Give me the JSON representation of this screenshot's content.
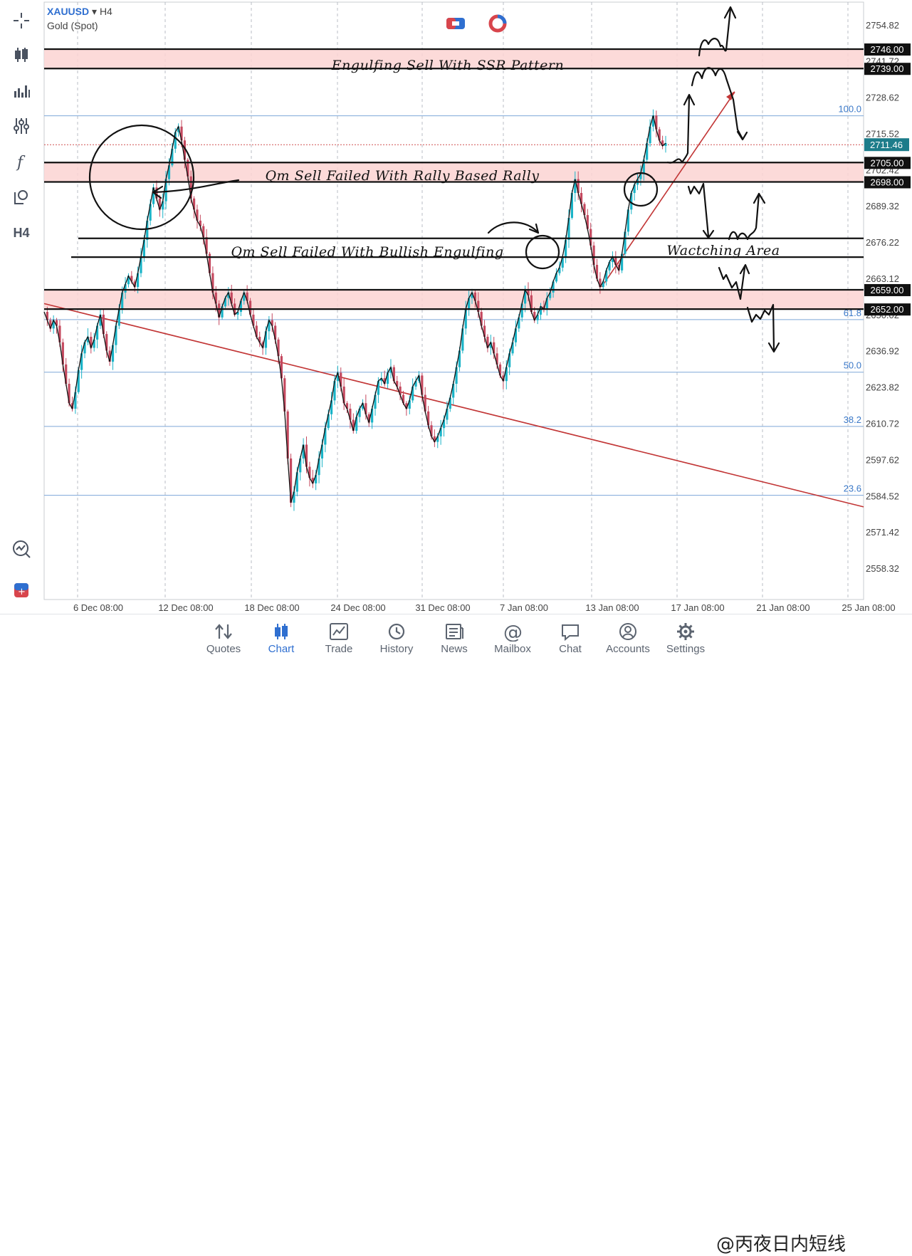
{
  "header": {
    "symbol": "XAUUSD",
    "timeframe": "H4",
    "description": "Gold (Spot)"
  },
  "toolbar": {
    "items": [
      {
        "icon": "crosshair-icon"
      },
      {
        "icon": "candlestick-icon"
      },
      {
        "icon": "indicators-icon"
      },
      {
        "icon": "sliders-icon"
      },
      {
        "icon": "function-icon"
      },
      {
        "icon": "objects-icon"
      },
      {
        "icon": "timeframe-label",
        "label": "H4"
      },
      {
        "icon": "zoom-chart-icon"
      },
      {
        "icon": "trade-icon"
      }
    ]
  },
  "colors": {
    "bull": "#19b3c7",
    "bear": "#c4485e",
    "zone": "#fbd4d2",
    "fib": "#7ea7d8",
    "trend": "#c23636",
    "active": "#2f6fd0"
  },
  "chart_data": {
    "type": "candlestick",
    "symbol": "XAUUSD",
    "timeframe": "H4",
    "ylim": [
      2547,
      2763
    ],
    "y_ticks": [
      2754.82,
      2741.72,
      2728.62,
      2715.52,
      2702.42,
      2689.32,
      2676.22,
      2663.12,
      2650.02,
      2636.92,
      2623.82,
      2610.72,
      2597.62,
      2584.52,
      2571.42,
      2558.32
    ],
    "x_labels": [
      "6 Dec 08:00",
      "12 Dec 08:00",
      "18 Dec 08:00",
      "24 Dec 08:00",
      "31 Dec 08:00",
      "7 Jan 08:00",
      "13 Jan 08:00",
      "17 Jan 08:00",
      "21 Jan 08:00",
      "25 Jan 08:00"
    ],
    "current_price": "2711.46",
    "price_path": [
      2651,
      2648,
      2645,
      2648,
      2646,
      2640,
      2632,
      2625,
      2618,
      2616,
      2622,
      2630,
      2636,
      2640,
      2642,
      2638,
      2641,
      2646,
      2650,
      2643,
      2637,
      2633,
      2639,
      2646,
      2652,
      2658,
      2661,
      2664,
      2662,
      2660,
      2665,
      2671,
      2677,
      2684,
      2690,
      2696,
      2692,
      2688,
      2691,
      2699,
      2704,
      2710,
      2716,
      2718,
      2713,
      2706,
      2700,
      2692,
      2688,
      2684,
      2682,
      2678,
      2672,
      2665,
      2658,
      2654,
      2649,
      2653,
      2656,
      2658,
      2654,
      2650,
      2651,
      2655,
      2658,
      2655,
      2650,
      2646,
      2642,
      2640,
      2638,
      2644,
      2648,
      2646,
      2641,
      2635,
      2627,
      2615,
      2598,
      2582,
      2586,
      2593,
      2598,
      2603,
      2595,
      2591,
      2589,
      2592,
      2598,
      2603,
      2609,
      2614,
      2619,
      2626,
      2629,
      2624,
      2618,
      2616,
      2612,
      2608,
      2613,
      2616,
      2618,
      2614,
      2611,
      2616,
      2621,
      2626,
      2627,
      2625,
      2629,
      2631,
      2626,
      2624,
      2621,
      2618,
      2616,
      2619,
      2624,
      2626,
      2628,
      2621,
      2615,
      2610,
      2606,
      2604,
      2606,
      2609,
      2612,
      2616,
      2620,
      2625,
      2631,
      2637,
      2645,
      2652,
      2656,
      2658,
      2655,
      2651,
      2646,
      2642,
      2638,
      2640,
      2636,
      2632,
      2628,
      2626,
      2631,
      2636,
      2640,
      2645,
      2649,
      2654,
      2659,
      2657,
      2651,
      2648,
      2650,
      2653,
      2652,
      2656,
      2658,
      2662,
      2665,
      2667,
      2671,
      2677,
      2685,
      2694,
      2699,
      2694,
      2690,
      2686,
      2681,
      2675,
      2668,
      2663,
      2660,
      2662,
      2666,
      2669,
      2671,
      2668,
      2666,
      2672,
      2680,
      2688,
      2694,
      2697,
      2699,
      2701,
      2706,
      2712,
      2718,
      2722,
      2717,
      2713,
      2711,
      2712
    ],
    "horizontal_levels": [
      {
        "price": "2746.00",
        "y": 2746.0
      },
      {
        "price": "2739.00",
        "y": 2739.0
      },
      {
        "price": "2705.00",
        "y": 2705.0
      },
      {
        "price": "2698.00",
        "y": 2698.0
      },
      {
        "price": "2659.00",
        "y": 2659.0
      },
      {
        "price": "2652.00",
        "y": 2652.0
      }
    ],
    "extra_lines": [
      2677.6,
      2670.8
    ],
    "fibonacci": [
      {
        "label": "100.0",
        "y": 2721.9
      },
      {
        "label": "61.8",
        "y": 2648.2
      },
      {
        "label": "50.0",
        "y": 2629.2
      },
      {
        "label": "38.2",
        "y": 2609.6
      },
      {
        "label": "23.6",
        "y": 2584.7
      }
    ],
    "annotations": [
      {
        "text": "Engulfing Sell With SSR Pattern"
      },
      {
        "text": "Qm Sell Failed With Rally Based Rally"
      },
      {
        "text": "Qm Sell Failed With Bullish Engulfing"
      },
      {
        "text": "Wactching Area"
      }
    ]
  },
  "tabs": [
    {
      "label": "Quotes",
      "icon": "quotes-icon"
    },
    {
      "label": "Chart",
      "icon": "chart-icon",
      "active": true
    },
    {
      "label": "Trade",
      "icon": "trade-chart-icon"
    },
    {
      "label": "History",
      "icon": "history-icon"
    },
    {
      "label": "News",
      "icon": "news-icon"
    },
    {
      "label": "Mailbox",
      "icon": "mailbox-icon"
    },
    {
      "label": "Chat",
      "icon": "chat-icon"
    },
    {
      "label": "Accounts",
      "icon": "accounts-icon"
    },
    {
      "label": "Settings",
      "icon": "settings-icon"
    }
  ],
  "watermark": "@丙夜日内短线"
}
